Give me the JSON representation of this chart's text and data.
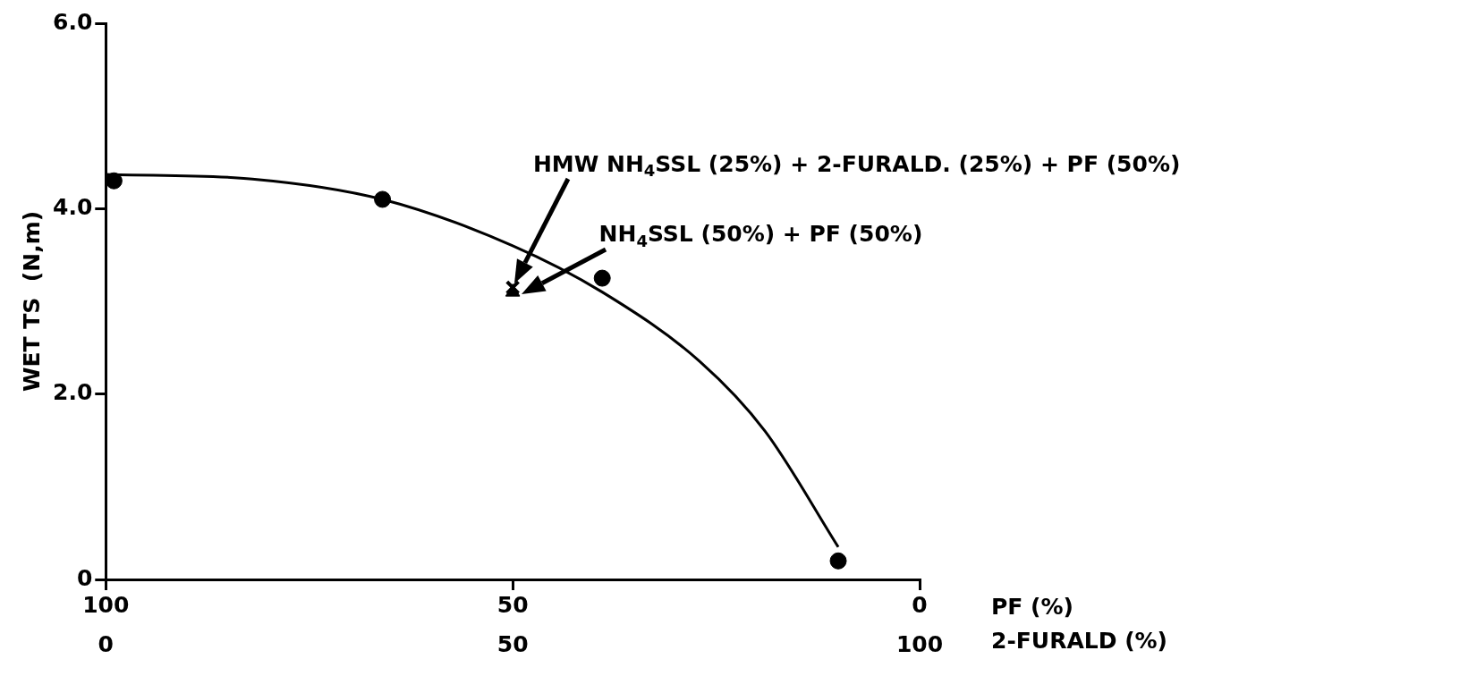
{
  "chart_data": {
    "type": "scatter",
    "xlabel": "PF (%)",
    "x2label": "2-FURALD (%)",
    "ylabel": "WET TS  (N,m)",
    "xlim": [
      100,
      0
    ],
    "xticks": [
      100,
      50,
      0
    ],
    "x2lim": [
      0,
      100
    ],
    "x2ticks": [
      0,
      50,
      100
    ],
    "ylim": [
      0,
      6
    ],
    "yticks": [
      {
        "value": 0,
        "label": "0"
      },
      {
        "value": 2,
        "label": "2.0"
      },
      {
        "value": 4,
        "label": "4.0"
      },
      {
        "value": 6,
        "label": "6.0"
      }
    ],
    "grid": false,
    "legend": false,
    "series": [
      {
        "x": [
          99,
          66,
          39,
          10
        ],
        "values": [
          4.3,
          4.1,
          3.25,
          0.2
        ],
        "color": "#000000",
        "marker": "circle"
      },
      {
        "x": [
          50
        ],
        "values": [
          3.15
        ],
        "color": "#000000",
        "marker": "cross"
      },
      {
        "x": [
          50
        ],
        "values": [
          3.1
        ],
        "color": "#000000",
        "marker": "triangle"
      },
      {
        "type": "line",
        "x": [
          100,
          82,
          66,
          50,
          39,
          27,
          19,
          10
        ],
        "values": [
          4.37,
          4.32,
          4.1,
          3.6,
          3.1,
          2.35,
          1.6,
          0.35
        ],
        "color": "#000000",
        "marker": "none",
        "line_style": "solid"
      }
    ],
    "annotations": [
      "HMW NH$_{4}$SSL (25%) + 2-FURALD. (25%) + PF (50%)",
      "NH$_{4}$SSL (50%) + PF (50%)"
    ]
  }
}
